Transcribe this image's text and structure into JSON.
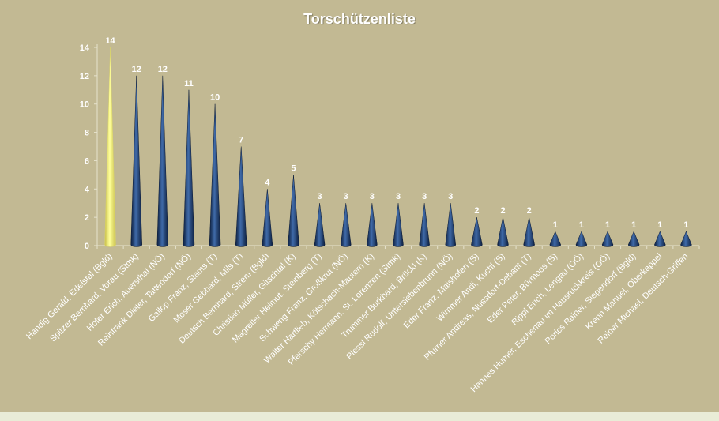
{
  "chart_data": {
    "type": "bar",
    "title": "Torschützenliste",
    "categories": [
      "Handig Gerald, Edelstal (Bgld)",
      "Spitzer Bernhard, Vorau (Stmk)",
      "Hofer Erich, Auersthal (NÖ)",
      "Reinfrank Dieter, Tattendorf (NÖ)",
      "Gallop Franz, Stams (T)",
      "Moser Gebhard, Mils (T)",
      "Deutsch Bernhard, Strem (Bgld)",
      "Christian Müller, Gitschtal (K)",
      "Magreiter Helmut, Steinberg (T)",
      "Schweng Franz, Großkrut (NÖ)",
      "Walter Hartlieb, Kötschach-Mautern (K)",
      "Pferschy Hermann, St. Lorenzen (Stmk)",
      "Trummer Burkhard, Brückl (K)",
      "Plessl Rudolf, Untersiebenbrunn (NÖ)",
      "Eder Franz, Maishofen (S)",
      "Wimmer Andi, Kuchl (S)",
      "Pfurner Andreas, Nussdorf-Debant (T)",
      "Eder Peter, Bürmoos (S)",
      "Rippl Erich, Lengau (OÖ)",
      "Hannes Humer, Eschenau im Hausruckkreis (OÖ)",
      "Porics Rainer, Siegendorf (Bgld)",
      "Krenn Manuel, Oberkappel",
      "Reiner Michael, Deutsch-Griffen"
    ],
    "values": [
      14,
      12,
      12,
      11,
      10,
      7,
      4,
      5,
      3,
      3,
      3,
      3,
      3,
      3,
      2,
      2,
      2,
      1,
      1,
      1,
      1,
      1,
      1
    ],
    "ylim": [
      0,
      14
    ],
    "yticks": [
      0,
      2,
      4,
      6,
      8,
      10,
      12,
      14
    ],
    "data_labels": true,
    "grid": false,
    "legend": "none",
    "bar_shape": "cone",
    "colors": {
      "highlight_bar": "#f7f57a",
      "bar": "#1f3a66",
      "background": "#c2b993",
      "strip": "#e9ecd7",
      "text": "#ffffff",
      "axis": "#e6e2cc"
    }
  }
}
